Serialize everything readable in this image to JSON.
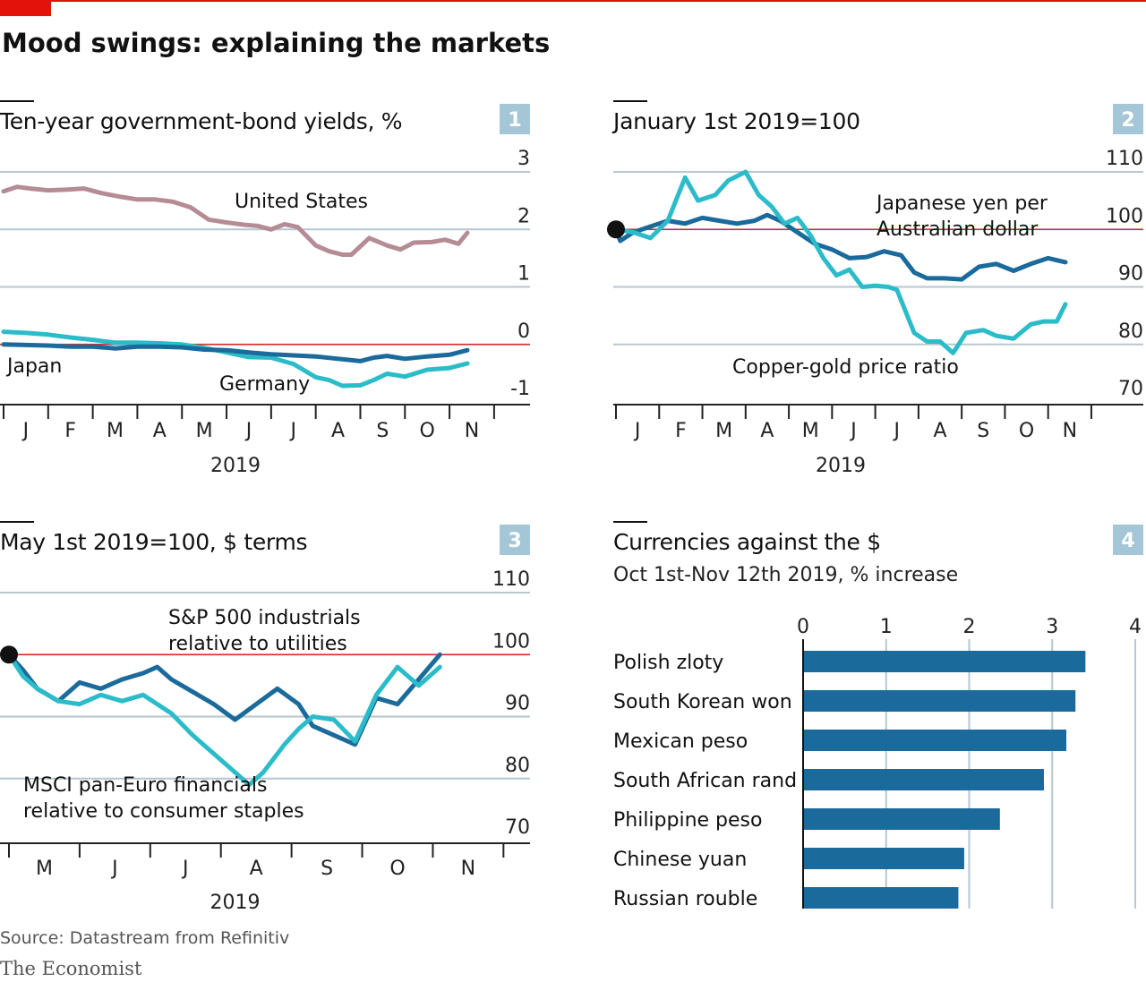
{
  "title": "Mood swings: explaining the markets",
  "source": "Source: Datastream from Refinitiv",
  "brand": "The Economist",
  "colors": {
    "accent_red": "#e3120b",
    "grid": "#b7c6cf",
    "dark_blue": "#1a6a9b",
    "cyan": "#2cbcc9",
    "mauve": "#b58c96",
    "bar_blue": "#1a6a9b",
    "badge": "#a5c6d6"
  },
  "chart_data": [
    {
      "id": 1,
      "type": "line",
      "panel_number": "1",
      "title": "Ten-year government-bond yields, %",
      "y_ticks": [
        "3",
        "2",
        "1",
        "0",
        "-1"
      ],
      "ylim": [
        -1,
        3
      ],
      "x_ticks": [
        "J",
        "F",
        "M",
        "A",
        "M",
        "J",
        "J",
        "A",
        "S",
        "O",
        "N"
      ],
      "x_year": "2019",
      "xlim": [
        0,
        10.4
      ],
      "reference_line": 0,
      "series": [
        {
          "name": "United States",
          "color": "mauve",
          "x": [
            0,
            0.3,
            0.6,
            1,
            1.4,
            1.8,
            2.2,
            2.6,
            3,
            3.4,
            3.8,
            4.2,
            4.6,
            5,
            5.4,
            5.7,
            6,
            6.3,
            6.6,
            7,
            7.3,
            7.6,
            7.8,
            8.2,
            8.6,
            8.9,
            9.2,
            9.6,
            9.9,
            10.2,
            10.4
          ],
          "y": [
            2.66,
            2.74,
            2.71,
            2.68,
            2.69,
            2.71,
            2.63,
            2.57,
            2.52,
            2.52,
            2.48,
            2.38,
            2.17,
            2.12,
            2.08,
            2.06,
            2.0,
            2.09,
            2.04,
            1.72,
            1.62,
            1.56,
            1.56,
            1.85,
            1.72,
            1.65,
            1.77,
            1.78,
            1.82,
            1.75,
            1.94
          ]
        },
        {
          "name": "Germany",
          "color": "cyan",
          "x": [
            0,
            0.5,
            1,
            1.5,
            2,
            2.5,
            3,
            3.5,
            4,
            4.5,
            5,
            5.5,
            6,
            6.5,
            7,
            7.3,
            7.6,
            8,
            8.3,
            8.6,
            9,
            9.5,
            10,
            10.4
          ],
          "y": [
            0.22,
            0.2,
            0.17,
            0.12,
            0.08,
            0.03,
            0.03,
            0.02,
            0.0,
            -0.06,
            -0.14,
            -0.22,
            -0.23,
            -0.34,
            -0.57,
            -0.62,
            -0.72,
            -0.71,
            -0.62,
            -0.51,
            -0.56,
            -0.44,
            -0.41,
            -0.33
          ]
        },
        {
          "name": "Japan",
          "color": "dark_blue",
          "x": [
            0,
            0.5,
            1,
            1.5,
            2,
            2.5,
            3,
            3.5,
            4,
            4.5,
            5,
            5.5,
            6,
            6.5,
            7,
            7.5,
            8,
            8.3,
            8.6,
            9,
            9.5,
            10,
            10.4
          ],
          "y": [
            0.0,
            -0.01,
            -0.02,
            -0.04,
            -0.04,
            -0.07,
            -0.04,
            -0.04,
            -0.05,
            -0.09,
            -0.1,
            -0.14,
            -0.17,
            -0.19,
            -0.21,
            -0.25,
            -0.29,
            -0.23,
            -0.2,
            -0.25,
            -0.21,
            -0.18,
            -0.1
          ]
        }
      ],
      "labels": [
        "United States",
        "Japan",
        "Germany"
      ]
    },
    {
      "id": 2,
      "type": "line",
      "panel_number": "2",
      "title": "January 1st 2019=100",
      "y_ticks": [
        "110",
        "100",
        "90",
        "80",
        "70"
      ],
      "ylim": [
        70,
        110
      ],
      "x_ticks": [
        "J",
        "F",
        "M",
        "A",
        "M",
        "J",
        "J",
        "A",
        "S",
        "O",
        "N"
      ],
      "x_year": "2019",
      "xlim": [
        0,
        10.4
      ],
      "reference_line": 100,
      "series": [
        {
          "name": "Japanese yen per Australian dollar",
          "color": "dark_blue",
          "x": [
            0,
            0.1,
            0.4,
            0.8,
            1.2,
            1.6,
            2,
            2.4,
            2.8,
            3.2,
            3.5,
            3.8,
            4.2,
            4.6,
            5,
            5.4,
            5.8,
            6.2,
            6.6,
            6.9,
            7.2,
            7.6,
            8,
            8.4,
            8.8,
            9.2,
            9.6,
            10,
            10.4
          ],
          "y": [
            100,
            98,
            99.5,
            100.5,
            101.5,
            101,
            102,
            101.5,
            101,
            101.5,
            102.5,
            101.5,
            99.5,
            97.5,
            96.5,
            95,
            95.2,
            96.2,
            95.5,
            92.5,
            91.5,
            91.5,
            91.3,
            93.5,
            94,
            92.8,
            94,
            95,
            94.3
          ]
        },
        {
          "name": "Copper-gold price ratio",
          "color": "cyan",
          "x": [
            0,
            0.4,
            0.8,
            1.2,
            1.6,
            1.9,
            2.3,
            2.6,
            3,
            3.3,
            3.6,
            3.9,
            4.2,
            4.5,
            4.8,
            5.1,
            5.4,
            5.7,
            6,
            6.3,
            6.5,
            6.9,
            7.2,
            7.5,
            7.8,
            8.1,
            8.5,
            8.8,
            9.2,
            9.6,
            9.9,
            10.2,
            10.4
          ],
          "y": [
            100,
            99.5,
            98.5,
            101.5,
            109,
            105,
            106,
            108.5,
            110,
            106,
            104,
            101,
            102,
            99,
            95,
            92,
            93,
            90,
            90.2,
            90,
            89.5,
            82,
            80.5,
            80.5,
            78.5,
            82,
            82.5,
            81.5,
            81,
            83.5,
            84,
            84,
            87
          ]
        }
      ],
      "labels": [
        "Japanese yen per",
        "Australian dollar",
        "Copper-gold price ratio"
      ]
    },
    {
      "id": 3,
      "type": "line",
      "panel_number": "3",
      "title": "May 1st 2019=100, $ terms",
      "y_ticks": [
        "110",
        "100",
        "90",
        "80",
        "70"
      ],
      "ylim": [
        70,
        110
      ],
      "x_ticks": [
        "M",
        "J",
        "J",
        "A",
        "S",
        "O",
        "N"
      ],
      "x_year": "2019",
      "xlim": [
        0,
        6.4
      ],
      "reference_line": 100,
      "series": [
        {
          "name": "S&P 500 industrials relative to utilities",
          "color": "dark_blue",
          "x": [
            0,
            0.2,
            0.4,
            0.7,
            1,
            1.3,
            1.6,
            1.9,
            2.1,
            2.3,
            2.6,
            2.9,
            3.2,
            3.5,
            3.8,
            4.1,
            4.3,
            4.6,
            4.9,
            5.2,
            5.5,
            5.8,
            6.1
          ],
          "y": [
            100,
            97.5,
            94.5,
            92.5,
            95.5,
            94.5,
            96,
            97,
            98,
            96,
            94,
            92,
            89.5,
            92,
            94.5,
            92,
            88.5,
            87,
            85.5,
            93,
            92,
            96,
            100
          ]
        },
        {
          "name": "MSCI pan-Euro financials relative to consumer staples",
          "color": "cyan",
          "x": [
            0,
            0.2,
            0.4,
            0.7,
            1,
            1.3,
            1.6,
            1.9,
            2.1,
            2.3,
            2.6,
            2.9,
            3.2,
            3.4,
            3.6,
            3.9,
            4.1,
            4.3,
            4.6,
            4.9,
            5.2,
            5.5,
            5.8,
            6.1
          ],
          "y": [
            100,
            96.5,
            94.5,
            92.5,
            92,
            93.5,
            92.5,
            93.5,
            92,
            90.5,
            87,
            84,
            81,
            79,
            81,
            85.5,
            88,
            90,
            89.5,
            86,
            93.5,
            98,
            95,
            98
          ]
        }
      ],
      "labels": [
        "S&P 500 industrials",
        "relative to utilities",
        "MSCI pan-Euro financials",
        "relative to consumer staples"
      ]
    },
    {
      "id": 4,
      "type": "bar",
      "orientation": "horizontal",
      "panel_number": "4",
      "title": "Currencies against the $",
      "subtitle": "Oct 1st-Nov 12th 2019, % increase",
      "x_ticks": [
        "0",
        "1",
        "2",
        "3",
        "4"
      ],
      "xlim": [
        0,
        4
      ],
      "categories": [
        "Polish zloty",
        "South Korean won",
        "Mexican peso",
        "South African rand",
        "Philippine peso",
        "Chinese yuan",
        "Russian rouble"
      ],
      "values": [
        3.4,
        3.28,
        3.17,
        2.9,
        2.37,
        1.94,
        1.87
      ]
    }
  ]
}
